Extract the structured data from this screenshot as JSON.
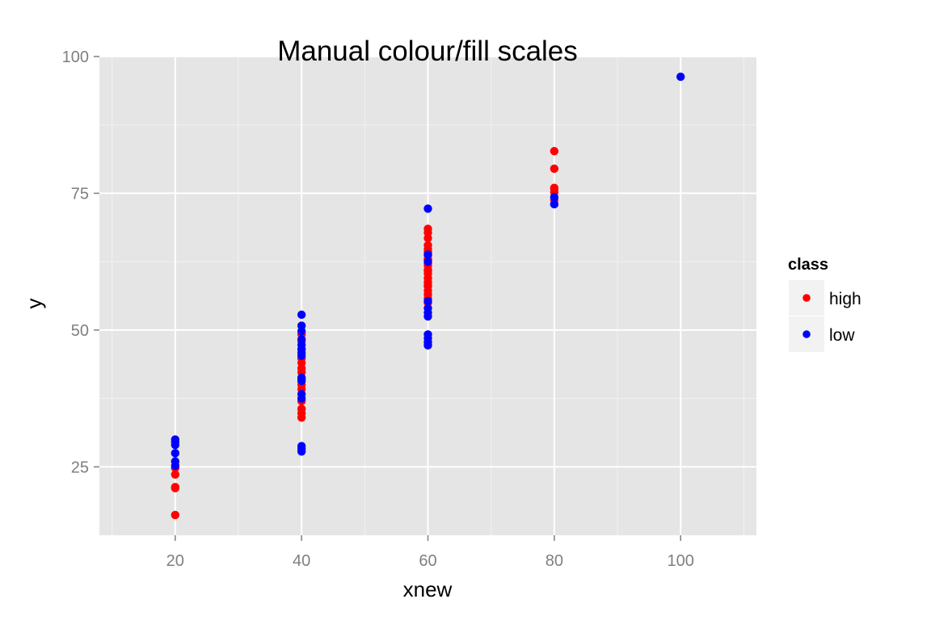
{
  "chart_data": {
    "type": "scatter",
    "title": "Manual colour/fill scales",
    "xlabel": "xnew",
    "ylabel": "y",
    "xlim": [
      8,
      112
    ],
    "ylim": [
      12.5,
      100
    ],
    "xticks": [
      20,
      40,
      60,
      80,
      100
    ],
    "yticks": [
      25,
      50,
      75,
      100
    ],
    "grid": true,
    "background": "#e5e5e5",
    "legend": {
      "title": "class",
      "placement": "right",
      "entries": [
        {
          "label": "high",
          "color": "#ff0000"
        },
        {
          "label": "low",
          "color": "#0000ff"
        }
      ]
    },
    "series": [
      {
        "name": "high",
        "color": "#ff0000",
        "x": [
          20,
          20,
          20,
          20,
          20,
          40,
          40,
          40,
          40,
          40,
          40,
          40,
          40,
          40,
          40,
          40,
          40,
          40,
          40,
          60,
          60,
          60,
          60,
          60,
          60,
          60,
          60,
          60,
          60,
          60,
          60,
          60,
          60,
          60,
          60,
          60,
          60,
          60,
          60,
          60,
          60,
          80,
          80,
          80,
          80,
          80,
          80
        ],
        "y": [
          16.2,
          21.1,
          21.3,
          23.6,
          24.8,
          34.0,
          34.8,
          35.6,
          37.0,
          39.2,
          40.0,
          41.0,
          42.3,
          43.0,
          44.0,
          44.8,
          46.5,
          48.0,
          49.2,
          55.8,
          56.5,
          57.2,
          58.0,
          58.8,
          59.5,
          60.3,
          61.0,
          61.8,
          62.3,
          63.0,
          63.7,
          64.3,
          64.8,
          65.5,
          66.8,
          67.8,
          68.5,
          55.0,
          58.2,
          60.8,
          62.8,
          73.8,
          75.2,
          75.8,
          79.5,
          82.7,
          76.0
        ]
      },
      {
        "name": "low",
        "color": "#0000ff",
        "x": [
          20,
          20,
          20,
          20,
          20,
          20,
          40,
          40,
          40,
          40,
          40,
          40,
          40,
          40,
          40,
          40,
          40,
          40,
          40,
          40,
          40,
          60,
          60,
          60,
          60,
          60,
          60,
          60,
          60,
          60,
          60,
          60,
          80,
          80,
          100
        ],
        "y": [
          25.2,
          26.0,
          27.5,
          29.0,
          29.5,
          30.0,
          27.8,
          28.3,
          28.8,
          37.5,
          38.3,
          40.7,
          41.3,
          45.3,
          45.8,
          46.5,
          47.3,
          48.3,
          49.8,
          50.8,
          52.8,
          47.2,
          47.8,
          48.5,
          49.2,
          52.5,
          53.2,
          54.0,
          55.3,
          62.5,
          72.2,
          63.8,
          73.0,
          74.3,
          96.3
        ]
      }
    ]
  }
}
